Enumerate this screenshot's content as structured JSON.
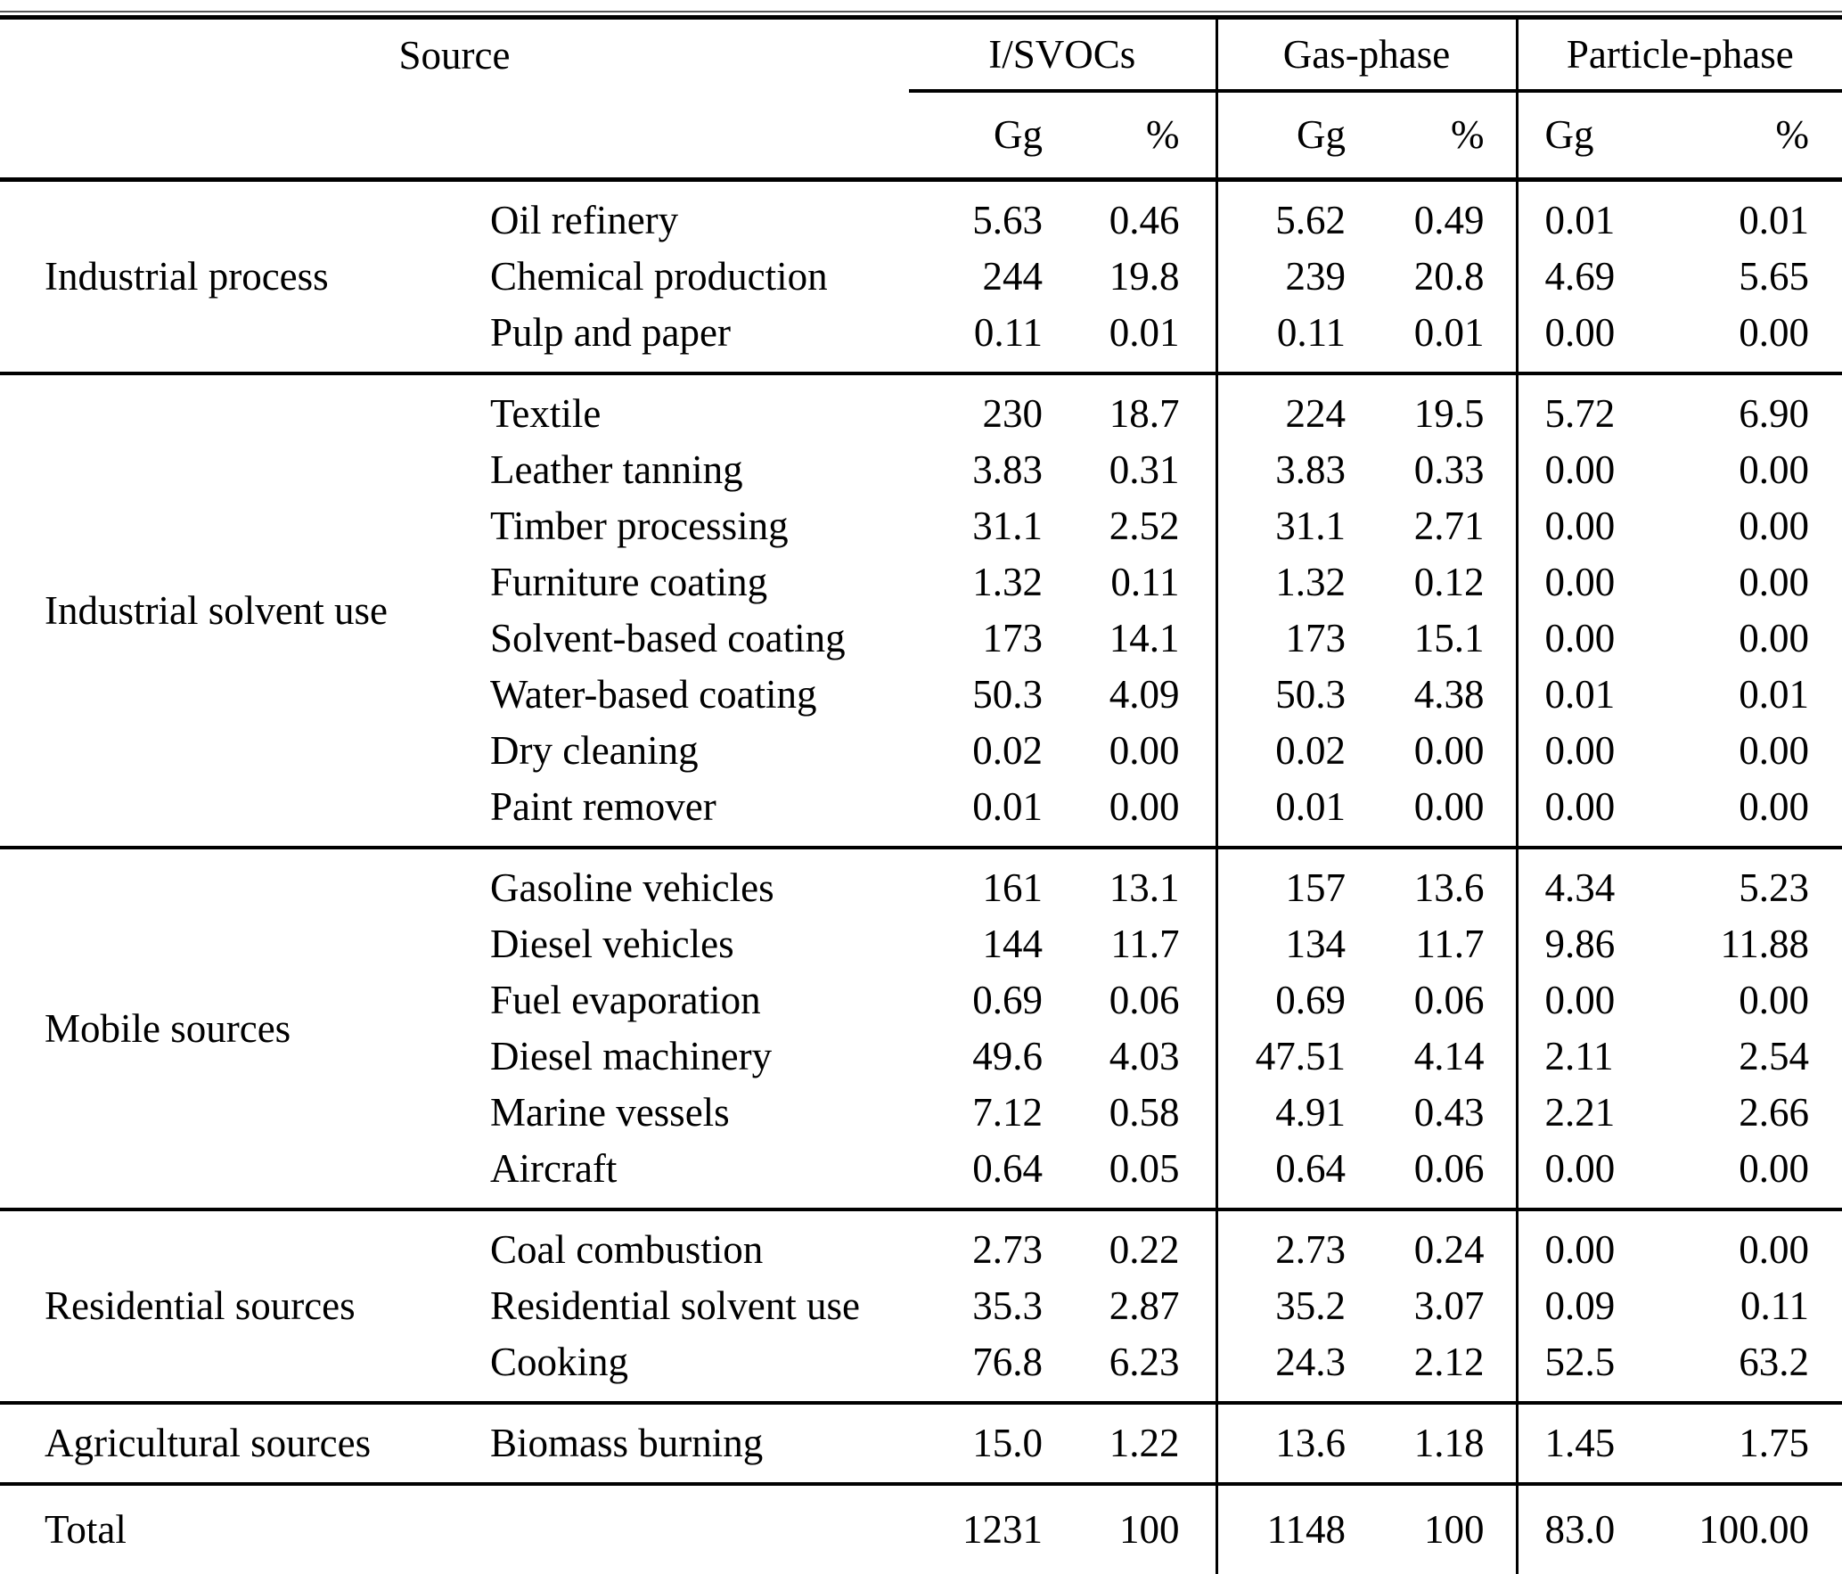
{
  "table": {
    "header": {
      "source_label": "Source",
      "groups": [
        {
          "label": "I/SVOCs",
          "unit1": "Gg",
          "unit2": "%"
        },
        {
          "label": "Gas-phase",
          "unit1": "Gg",
          "unit2": "%"
        },
        {
          "label": "Particle-phase",
          "unit1": "Gg",
          "unit2": "%"
        }
      ]
    },
    "sections": [
      {
        "category": "Industrial process",
        "rows": [
          {
            "name": "Oil refinery",
            "values": [
              "5.63",
              "0.46",
              "5.62",
              "0.49",
              "0.01",
              "0.01"
            ]
          },
          {
            "name": "Chemical production",
            "values": [
              "244",
              "19.8",
              "239",
              "20.8",
              "4.69",
              "5.65"
            ]
          },
          {
            "name": "Pulp and paper",
            "values": [
              "0.11",
              "0.01",
              "0.11",
              "0.01",
              "0.00",
              "0.00"
            ]
          }
        ]
      },
      {
        "category": "Industrial solvent use",
        "rows": [
          {
            "name": "Textile",
            "values": [
              "230",
              "18.7",
              "224",
              "19.5",
              "5.72",
              "6.90"
            ]
          },
          {
            "name": "Leather tanning",
            "values": [
              "3.83",
              "0.31",
              "3.83",
              "0.33",
              "0.00",
              "0.00"
            ]
          },
          {
            "name": "Timber processing",
            "values": [
              "31.1",
              "2.52",
              "31.1",
              "2.71",
              "0.00",
              "0.00"
            ]
          },
          {
            "name": "Furniture coating",
            "values": [
              "1.32",
              "0.11",
              "1.32",
              "0.12",
              "0.00",
              "0.00"
            ]
          },
          {
            "name": "Solvent-based coating",
            "values": [
              "173",
              "14.1",
              "173",
              "15.1",
              "0.00",
              "0.00"
            ]
          },
          {
            "name": "Water-based coating",
            "values": [
              "50.3",
              "4.09",
              "50.3",
              "4.38",
              "0.01",
              "0.01"
            ]
          },
          {
            "name": "Dry cleaning",
            "values": [
              "0.02",
              "0.00",
              "0.02",
              "0.00",
              "0.00",
              "0.00"
            ]
          },
          {
            "name": "Paint remover",
            "values": [
              "0.01",
              "0.00",
              "0.01",
              "0.00",
              "0.00",
              "0.00"
            ]
          }
        ]
      },
      {
        "category": "Mobile sources",
        "rows": [
          {
            "name": "Gasoline vehicles",
            "values": [
              "161",
              "13.1",
              "157",
              "13.6",
              "4.34",
              "5.23"
            ]
          },
          {
            "name": "Diesel vehicles",
            "values": [
              "144",
              "11.7",
              "134",
              "11.7",
              "9.86",
              "11.88"
            ]
          },
          {
            "name": "Fuel evaporation",
            "values": [
              "0.69",
              "0.06",
              "0.69",
              "0.06",
              "0.00",
              "0.00"
            ]
          },
          {
            "name": "Diesel machinery",
            "values": [
              "49.6",
              "4.03",
              "47.51",
              "4.14",
              "2.11",
              "2.54"
            ]
          },
          {
            "name": "Marine vessels",
            "values": [
              "7.12",
              "0.58",
              "4.91",
              "0.43",
              "2.21",
              "2.66"
            ]
          },
          {
            "name": "Aircraft",
            "values": [
              "0.64",
              "0.05",
              "0.64",
              "0.06",
              "0.00",
              "0.00"
            ]
          }
        ]
      },
      {
        "category": "Residential sources",
        "rows": [
          {
            "name": "Coal combustion",
            "values": [
              "2.73",
              "0.22",
              "2.73",
              "0.24",
              "0.00",
              "0.00"
            ]
          },
          {
            "name": "Residential solvent use",
            "values": [
              "35.3",
              "2.87",
              "35.2",
              "3.07",
              "0.09",
              "0.11"
            ]
          },
          {
            "name": "Cooking",
            "values": [
              "76.8",
              "6.23",
              "24.3",
              "2.12",
              "52.5",
              "63.2"
            ]
          }
        ]
      },
      {
        "category": "Agricultural sources",
        "rows": [
          {
            "name": "Biomass burning",
            "values": [
              "15.0",
              "1.22",
              "13.6",
              "1.18",
              "1.45",
              "1.75"
            ]
          }
        ]
      }
    ],
    "total": {
      "label": "Total",
      "values": [
        "1231",
        "100",
        "1148",
        "100",
        "83.0",
        "100.00"
      ]
    }
  }
}
